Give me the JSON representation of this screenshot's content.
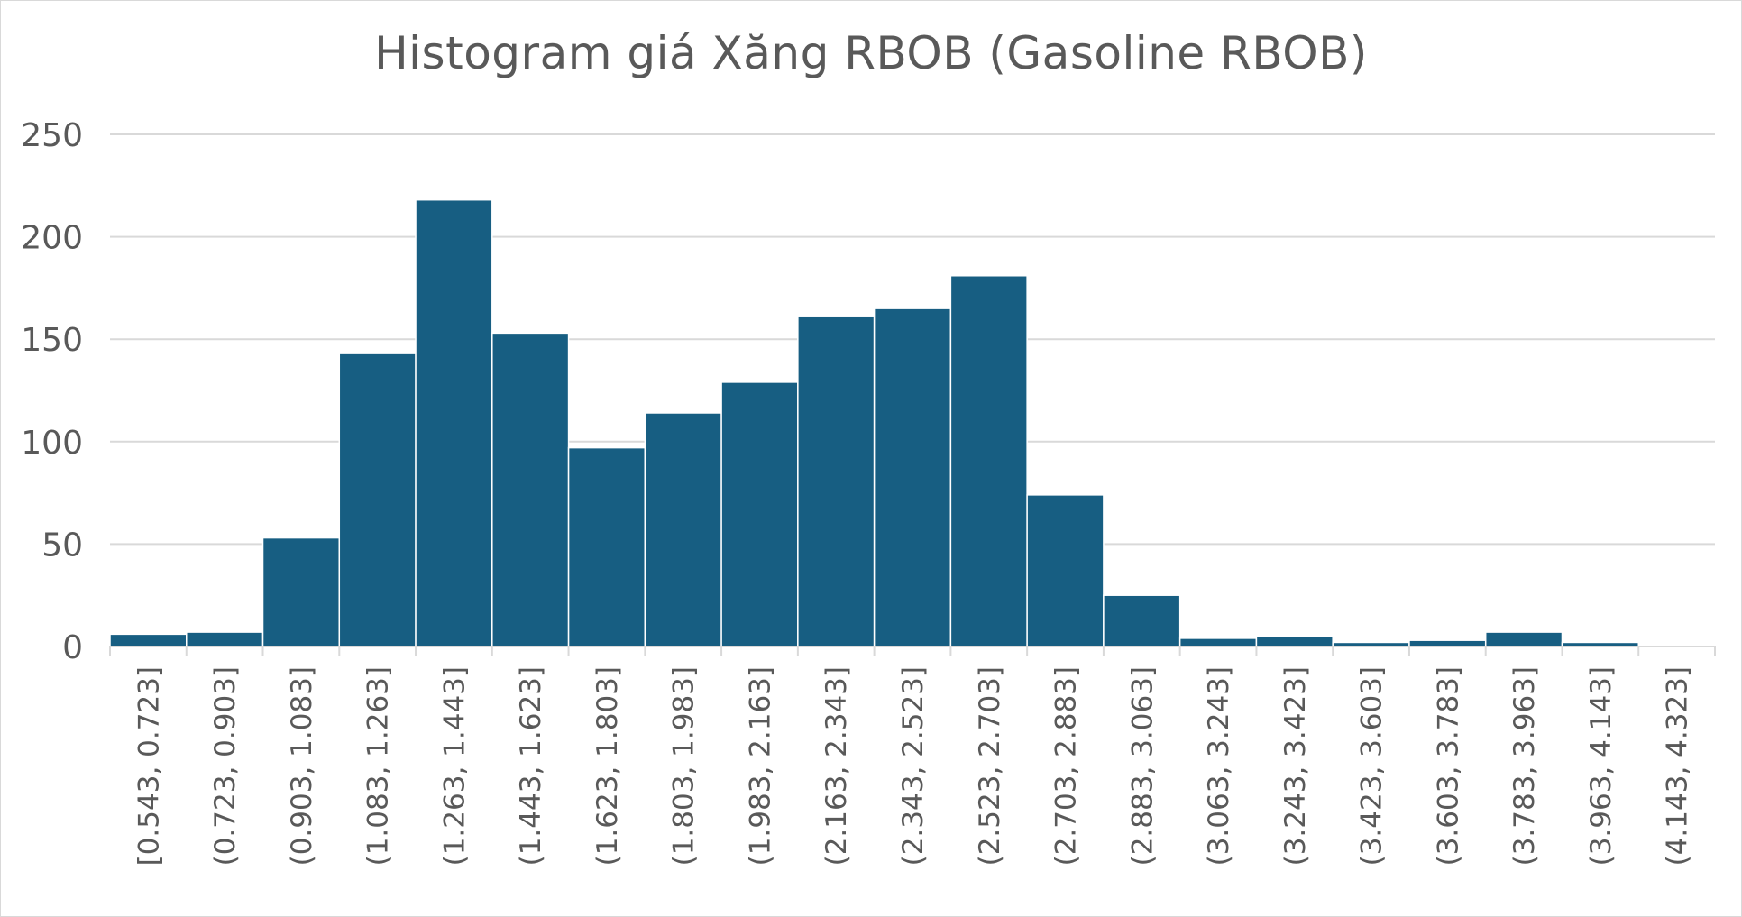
{
  "chart_data": {
    "type": "bar",
    "title": "Histogram giá Xăng RBOB (Gasoline RBOB)",
    "xlabel": "",
    "ylabel": "",
    "categories": [
      "[0.543, 0.723]",
      "(0.723, 0.903]",
      "(0.903, 1.083]",
      "(1.083, 1.263]",
      "(1.263, 1.443]",
      "(1.443, 1.623]",
      "(1.623, 1.803]",
      "(1.803, 1.983]",
      "(1.983, 2.163]",
      "(2.163, 2.343]",
      "(2.343, 2.523]",
      "(2.523, 2.703]",
      "(2.703, 2.883]",
      "(2.883, 3.063]",
      "(3.063, 3.243]",
      "(3.243, 3.423]",
      "(3.423, 3.603]",
      "(3.603, 3.783]",
      "(3.783, 3.963]",
      "(3.963, 4.143]",
      "(4.143, 4.323]"
    ],
    "values": [
      6,
      7,
      53,
      143,
      218,
      153,
      97,
      114,
      129,
      161,
      165,
      181,
      74,
      25,
      4,
      5,
      2,
      3,
      7,
      2,
      0
    ],
    "ylim": [
      0,
      250
    ],
    "yticks": [
      0,
      50,
      100,
      150,
      200,
      250
    ],
    "grid": true,
    "legend": "none",
    "bar_color": "#175e82",
    "gridline_color": "#d9d9d9",
    "text_color": "#595959"
  }
}
